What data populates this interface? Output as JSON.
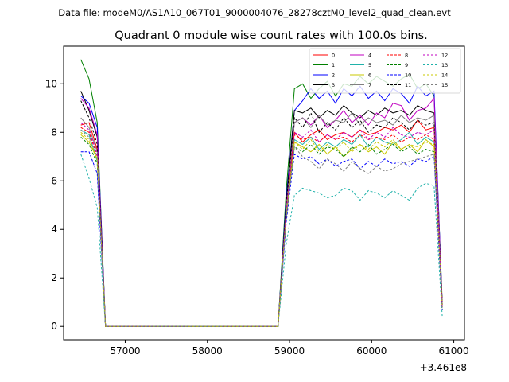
{
  "figure": {
    "suptitle": "Data file: modeM0/AS1A10_067T01_9000004076_28278cztM0_level2_quad_clean.evt",
    "title": "Quadrant 0 module wise count rates with 100.0s bins."
  },
  "chart_data": {
    "type": "line",
    "title": "Quadrant 0 module wise count rates with 100.0s bins.",
    "xlabel": "",
    "ylabel": "",
    "x_offset_label": "+3.461e8",
    "x_offset": 346100000,
    "xlim": [
      56250,
      61130
    ],
    "ylim": [
      -0.55,
      11.55
    ],
    "xticks": [
      57000,
      58000,
      59000,
      60000,
      61000
    ],
    "xtick_labels": [
      "57000",
      "58000",
      "59000",
      "60000",
      "61000"
    ],
    "yticks": [
      0,
      2,
      4,
      6,
      8,
      10
    ],
    "ytick_labels": [
      "0",
      "2",
      "4",
      "6",
      "8",
      "10"
    ],
    "grid": false,
    "legend": {
      "position": "top-right",
      "columns": 4
    },
    "x": [
      56460,
      56560,
      56660,
      56760,
      56860,
      56960,
      57060,
      57160,
      57260,
      57360,
      57460,
      57560,
      57660,
      57760,
      57860,
      57960,
      58060,
      58160,
      58260,
      58360,
      58460,
      58560,
      58660,
      58760,
      58860,
      58960,
      59060,
      59160,
      59260,
      59360,
      59460,
      59560,
      59660,
      59760,
      59860,
      59960,
      60060,
      60160,
      60260,
      60360,
      60460,
      60560,
      60660,
      60760,
      60860
    ],
    "series": [
      {
        "name": "0",
        "color": "#ff0000",
        "dash": "solid",
        "values": [
          8.3,
          8.4,
          7.3,
          0,
          0,
          0,
          0,
          0,
          0,
          0,
          0,
          0,
          0,
          0,
          0,
          0,
          0,
          0,
          0,
          0,
          0,
          0,
          0,
          0,
          0,
          4.8,
          8.0,
          7.6,
          7.9,
          8.1,
          7.7,
          7.9,
          8.0,
          7.8,
          8.1,
          7.9,
          8.0,
          8.2,
          8.1,
          8.3,
          8.0,
          8.5,
          8.1,
          8.2,
          0.8
        ]
      },
      {
        "name": "1",
        "color": "#008000",
        "dash": "solid",
        "values": [
          11.0,
          10.2,
          8.4,
          0,
          0,
          0,
          0,
          0,
          0,
          0,
          0,
          0,
          0,
          0,
          0,
          0,
          0,
          0,
          0,
          0,
          0,
          0,
          0,
          0,
          0,
          5.6,
          9.8,
          10.0,
          9.4,
          9.8,
          10.1,
          9.5,
          10.0,
          9.9,
          10.3,
          10.0,
          10.3,
          10.1,
          9.9,
          10.2,
          10.4,
          9.8,
          10.0,
          9.5,
          1.0
        ]
      },
      {
        "name": "2",
        "color": "#0000ff",
        "dash": "solid",
        "values": [
          9.5,
          9.2,
          8.2,
          0,
          0,
          0,
          0,
          0,
          0,
          0,
          0,
          0,
          0,
          0,
          0,
          0,
          0,
          0,
          0,
          0,
          0,
          0,
          0,
          0,
          0,
          5.3,
          8.9,
          9.3,
          9.8,
          9.4,
          9.7,
          9.2,
          9.8,
          9.5,
          9.9,
          9.4,
          9.7,
          9.3,
          9.8,
          9.6,
          9.2,
          9.9,
          9.5,
          9.7,
          0.9
        ]
      },
      {
        "name": "3",
        "color": "#000000",
        "dash": "solid",
        "values": [
          9.7,
          8.9,
          7.8,
          0,
          0,
          0,
          0,
          0,
          0,
          0,
          0,
          0,
          0,
          0,
          0,
          0,
          0,
          0,
          0,
          0,
          0,
          0,
          0,
          0,
          0,
          5.1,
          8.9,
          8.8,
          9.0,
          8.6,
          8.9,
          8.7,
          9.1,
          8.8,
          8.6,
          8.9,
          8.7,
          9.0,
          8.8,
          8.9,
          8.7,
          9.1,
          8.9,
          8.8,
          0.9
        ]
      },
      {
        "name": "4",
        "color": "#c000c0",
        "dash": "solid",
        "values": [
          9.4,
          9.0,
          7.9,
          0,
          0,
          0,
          0,
          0,
          0,
          0,
          0,
          0,
          0,
          0,
          0,
          0,
          0,
          0,
          0,
          0,
          0,
          0,
          0,
          0,
          0,
          4.9,
          8.4,
          8.6,
          8.3,
          8.7,
          8.2,
          8.5,
          8.9,
          8.4,
          8.7,
          8.3,
          8.8,
          8.6,
          9.2,
          9.1,
          8.5,
          8.9,
          9.0,
          9.4,
          0.9
        ]
      },
      {
        "name": "5",
        "color": "#20b2aa",
        "dash": "solid",
        "values": [
          8.1,
          7.9,
          6.8,
          0,
          0,
          0,
          0,
          0,
          0,
          0,
          0,
          0,
          0,
          0,
          0,
          0,
          0,
          0,
          0,
          0,
          0,
          0,
          0,
          0,
          0,
          4.6,
          7.7,
          7.5,
          7.8,
          7.3,
          7.6,
          7.4,
          7.7,
          7.5,
          7.9,
          7.4,
          7.8,
          7.6,
          7.5,
          7.7,
          8.0,
          7.5,
          7.8,
          7.6,
          0.8
        ]
      },
      {
        "name": "6",
        "color": "#c8c800",
        "dash": "solid",
        "values": [
          7.9,
          7.6,
          6.9,
          0,
          0,
          0,
          0,
          0,
          0,
          0,
          0,
          0,
          0,
          0,
          0,
          0,
          0,
          0,
          0,
          0,
          0,
          0,
          0,
          0,
          0,
          4.5,
          7.6,
          7.4,
          7.2,
          7.5,
          7.1,
          7.4,
          7.0,
          7.3,
          7.5,
          7.2,
          7.4,
          7.1,
          7.6,
          7.3,
          7.5,
          7.2,
          7.7,
          7.4,
          0.8
        ]
      },
      {
        "name": "7",
        "color": "#808080",
        "dash": "solid",
        "values": [
          8.6,
          8.2,
          7.2,
          0,
          0,
          0,
          0,
          0,
          0,
          0,
          0,
          0,
          0,
          0,
          0,
          0,
          0,
          0,
          0,
          0,
          0,
          0,
          0,
          0,
          0,
          4.9,
          8.4,
          8.6,
          8.2,
          8.7,
          8.3,
          8.5,
          8.4,
          8.8,
          8.3,
          8.6,
          8.4,
          8.5,
          8.3,
          8.7,
          8.4,
          8.6,
          8.5,
          8.7,
          0.9
        ]
      },
      {
        "name": "8",
        "color": "#ff0000",
        "dash": "dashed",
        "values": [
          8.2,
          8.0,
          7.0,
          0,
          0,
          0,
          0,
          0,
          0,
          0,
          0,
          0,
          0,
          0,
          0,
          0,
          0,
          0,
          0,
          0,
          0,
          0,
          0,
          0,
          0,
          4.7,
          7.9,
          7.7,
          7.8,
          7.6,
          7.9,
          7.7,
          7.8,
          7.6,
          7.9,
          7.7,
          7.8,
          7.7,
          7.9,
          7.6,
          7.8,
          7.7,
          7.9,
          7.7,
          0.8
        ]
      },
      {
        "name": "9",
        "color": "#008000",
        "dash": "dashed",
        "values": [
          7.8,
          7.5,
          6.7,
          0,
          0,
          0,
          0,
          0,
          0,
          0,
          0,
          0,
          0,
          0,
          0,
          0,
          0,
          0,
          0,
          0,
          0,
          0,
          0,
          0,
          0,
          4.5,
          7.4,
          7.2,
          7.5,
          7.1,
          7.4,
          7.3,
          7.0,
          7.4,
          7.2,
          7.5,
          7.1,
          7.3,
          7.5,
          7.2,
          7.4,
          7.1,
          7.3,
          7.2,
          0.7
        ]
      },
      {
        "name": "10",
        "color": "#0000ff",
        "dash": "dashed",
        "values": [
          7.2,
          7.2,
          6.3,
          0,
          0,
          0,
          0,
          0,
          0,
          0,
          0,
          0,
          0,
          0,
          0,
          0,
          0,
          0,
          0,
          0,
          0,
          0,
          0,
          0,
          0,
          4.3,
          7.1,
          6.9,
          7.0,
          6.7,
          6.9,
          6.6,
          6.8,
          6.9,
          6.5,
          6.8,
          6.6,
          6.9,
          6.7,
          6.8,
          6.6,
          6.9,
          6.8,
          7.0,
          0.7
        ]
      },
      {
        "name": "11",
        "color": "#000000",
        "dash": "dashed",
        "values": [
          9.3,
          8.6,
          7.5,
          0,
          0,
          0,
          0,
          0,
          0,
          0,
          0,
          0,
          0,
          0,
          0,
          0,
          0,
          0,
          0,
          0,
          0,
          0,
          0,
          0,
          0,
          5.0,
          8.6,
          8.2,
          8.8,
          8.0,
          8.4,
          8.1,
          8.6,
          8.2,
          8.5,
          8.0,
          8.3,
          8.2,
          8.6,
          8.4,
          8.1,
          8.5,
          8.3,
          8.4,
          0.9
        ]
      },
      {
        "name": "12",
        "color": "#c000c0",
        "dash": "dashed",
        "values": [
          8.4,
          8.1,
          7.1,
          0,
          0,
          0,
          0,
          0,
          0,
          0,
          0,
          0,
          0,
          0,
          0,
          0,
          0,
          0,
          0,
          0,
          0,
          0,
          0,
          0,
          0,
          4.8,
          8.0,
          7.8,
          8.1,
          7.6,
          7.9,
          7.7,
          8.0,
          7.8,
          8.1,
          7.7,
          8.0,
          7.8,
          8.2,
          7.9,
          7.8,
          8.0,
          7.9,
          8.1,
          0.8
        ]
      },
      {
        "name": "13",
        "color": "#20b2aa",
        "dash": "dashed",
        "values": [
          7.1,
          6.1,
          4.9,
          0,
          0,
          0,
          0,
          0,
          0,
          0,
          0,
          0,
          0,
          0,
          0,
          0,
          0,
          0,
          0,
          0,
          0,
          0,
          0,
          0,
          0,
          3.4,
          5.4,
          5.7,
          5.6,
          5.5,
          5.3,
          5.4,
          5.7,
          5.6,
          5.2,
          5.6,
          5.5,
          5.3,
          5.6,
          5.4,
          5.2,
          5.7,
          5.9,
          5.8,
          0.4
        ]
      },
      {
        "name": "14",
        "color": "#c8c800",
        "dash": "dashed",
        "values": [
          8.0,
          7.7,
          6.9,
          0,
          0,
          0,
          0,
          0,
          0,
          0,
          0,
          0,
          0,
          0,
          0,
          0,
          0,
          0,
          0,
          0,
          0,
          0,
          0,
          0,
          0,
          4.6,
          7.6,
          7.3,
          7.7,
          7.2,
          7.5,
          7.3,
          7.6,
          7.2,
          7.5,
          7.3,
          7.6,
          7.4,
          7.7,
          7.3,
          7.5,
          7.4,
          7.6,
          7.5,
          0.8
        ]
      },
      {
        "name": "15",
        "color": "#808080",
        "dash": "dashed",
        "values": [
          8.1,
          7.8,
          7.0,
          0,
          0,
          0,
          0,
          0,
          0,
          0,
          0,
          0,
          0,
          0,
          0,
          0,
          0,
          0,
          0,
          0,
          0,
          0,
          0,
          0,
          0,
          4.5,
          7.4,
          7.0,
          6.8,
          6.5,
          6.9,
          6.7,
          6.4,
          6.8,
          6.5,
          6.3,
          6.6,
          6.4,
          6.5,
          6.7,
          6.8,
          6.9,
          7.0,
          7.1,
          0.7
        ]
      }
    ]
  }
}
